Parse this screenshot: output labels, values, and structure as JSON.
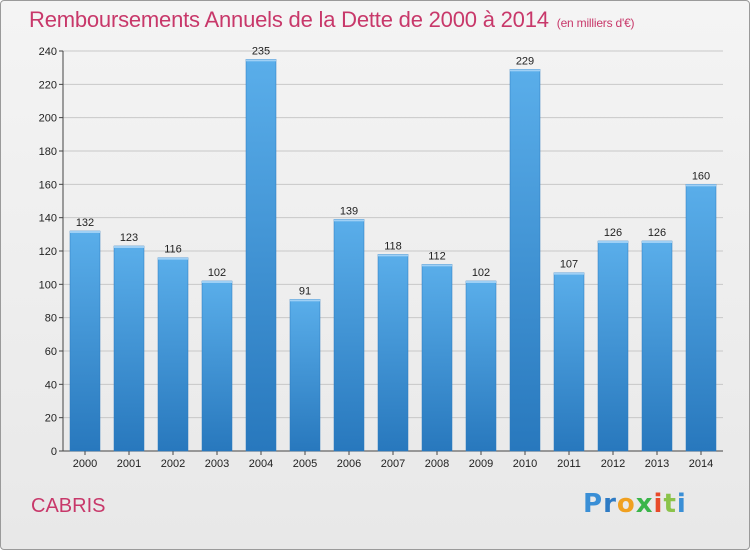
{
  "header": {
    "title": "Remboursements Annuels de la Dette de 2000 à 2014",
    "unit": "(en milliers d'€)"
  },
  "footer": {
    "commune": "CABRIS",
    "brand": "Proxiti",
    "brand_letters": [
      "P",
      "r",
      "o",
      "x",
      "i",
      "t",
      "i"
    ],
    "brand_colors": [
      "#3a8fd6",
      "#2e7bc4",
      "#f0a020",
      "#3ab54a",
      "#e84a2a",
      "#8bc34a",
      "#3a8fd6"
    ]
  },
  "chart_data": {
    "type": "bar",
    "title": "Remboursements Annuels de la Dette de 2000 à 2014",
    "subtitle": "(en milliers d'€)",
    "xlabel": "",
    "ylabel": "",
    "categories": [
      "2000",
      "2001",
      "2002",
      "2003",
      "2004",
      "2005",
      "2006",
      "2007",
      "2008",
      "2009",
      "2010",
      "2011",
      "2012",
      "2013",
      "2014"
    ],
    "values": [
      132,
      123,
      116,
      102,
      235,
      91,
      139,
      118,
      112,
      102,
      229,
      107,
      126,
      126,
      160
    ],
    "ylim": [
      0,
      240
    ],
    "yticks": [
      0,
      20,
      40,
      60,
      80,
      100,
      120,
      140,
      160,
      180,
      200,
      220,
      240
    ],
    "grid": true,
    "legend": "none",
    "bar_color": "#4fa3e0",
    "bar_color_dark": "#2a7fc2"
  }
}
